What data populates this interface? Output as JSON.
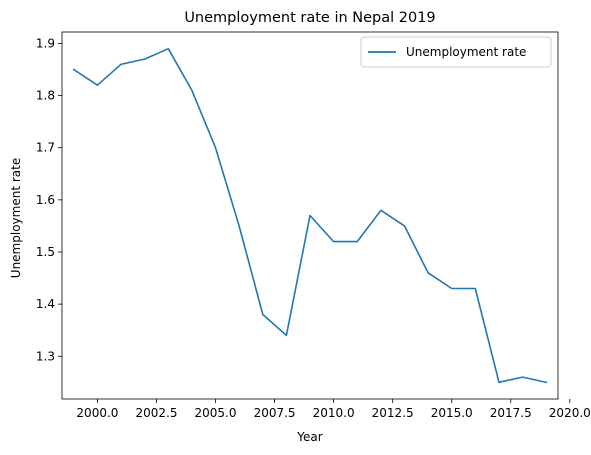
{
  "chart_data": {
    "type": "line",
    "title": "Unemployment rate in Nepal 2019",
    "xlabel": "Year",
    "ylabel": "Unemployment rate",
    "xlim": [
      1998.5,
      2019.5
    ],
    "ylim": [
      1.218,
      1.922
    ],
    "xticks": [
      2000.0,
      2002.5,
      2005.0,
      2007.5,
      2010.0,
      2012.5,
      2015.0,
      2017.5,
      2020.0
    ],
    "xtick_labels": [
      "2000.0",
      "2002.5",
      "2005.0",
      "2007.5",
      "2010.0",
      "2012.5",
      "2015.0",
      "2017.5",
      "2020.0"
    ],
    "yticks": [
      1.3,
      1.4,
      1.5,
      1.6,
      1.7,
      1.8,
      1.9
    ],
    "ytick_labels": [
      "1.3",
      "1.4",
      "1.5",
      "1.6",
      "1.7",
      "1.8",
      "1.9"
    ],
    "grid": false,
    "legend_position": "top-right",
    "series": [
      {
        "name": "Unemployment rate",
        "color": "#1f77b4",
        "x": [
          1999,
          2000,
          2001,
          2002,
          2003,
          2004,
          2005,
          2006,
          2007,
          2008,
          2009,
          2010,
          2011,
          2012,
          2013,
          2014,
          2015,
          2016,
          2017,
          2018,
          2019
        ],
        "y": [
          1.85,
          1.82,
          1.86,
          1.87,
          1.89,
          1.81,
          1.7,
          1.55,
          1.38,
          1.34,
          1.57,
          1.52,
          1.52,
          1.58,
          1.55,
          1.46,
          1.43,
          1.43,
          1.25,
          1.26,
          1.25
        ]
      }
    ]
  }
}
